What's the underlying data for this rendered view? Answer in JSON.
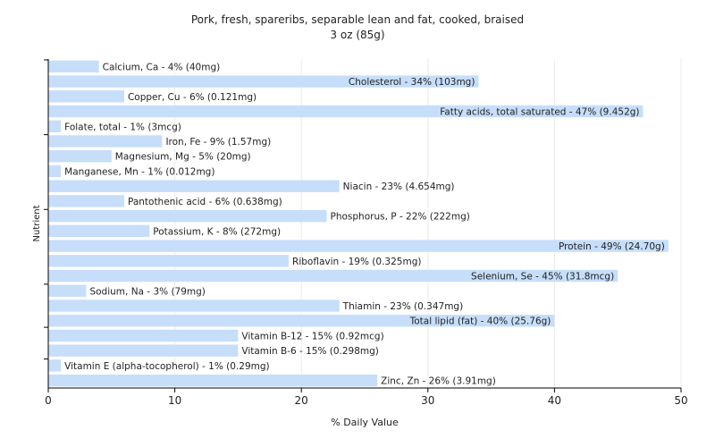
{
  "chart_data": {
    "type": "bar",
    "orientation": "horizontal",
    "title": "Pork, fresh, spareribs, separable lean and fat, cooked, braised",
    "subtitle": "3 oz (85g)",
    "xlabel": "% Daily Value",
    "ylabel": "Nutrient",
    "xlim": [
      0,
      50
    ],
    "xticks": [
      "0",
      "10",
      "20",
      "30",
      "40",
      "50"
    ],
    "grid": "vertical",
    "bar_color": "#c6defa",
    "bars": [
      {
        "name": "Calcium, Ca",
        "value": 4,
        "label": "Calcium, Ca - 4% (40mg)"
      },
      {
        "name": "Cholesterol",
        "value": 34,
        "label": "Cholesterol - 34% (103mg)"
      },
      {
        "name": "Copper, Cu",
        "value": 6,
        "label": "Copper, Cu - 6% (0.121mg)"
      },
      {
        "name": "Fatty acids, total saturated",
        "value": 47,
        "label": "Fatty acids, total saturated - 47% (9.452g)"
      },
      {
        "name": "Folate, total",
        "value": 1,
        "label": "Folate, total - 1% (3mcg)"
      },
      {
        "name": "Iron, Fe",
        "value": 9,
        "label": "Iron, Fe - 9% (1.57mg)"
      },
      {
        "name": "Magnesium, Mg",
        "value": 5,
        "label": "Magnesium, Mg - 5% (20mg)"
      },
      {
        "name": "Manganese, Mn",
        "value": 1,
        "label": "Manganese, Mn - 1% (0.012mg)"
      },
      {
        "name": "Niacin",
        "value": 23,
        "label": "Niacin - 23% (4.654mg)"
      },
      {
        "name": "Pantothenic acid",
        "value": 6,
        "label": "Pantothenic acid - 6% (0.638mg)"
      },
      {
        "name": "Phosphorus, P",
        "value": 22,
        "label": "Phosphorus, P - 22% (222mg)"
      },
      {
        "name": "Potassium, K",
        "value": 8,
        "label": "Potassium, K - 8% (272mg)"
      },
      {
        "name": "Protein",
        "value": 49,
        "label": "Protein - 49% (24.70g)"
      },
      {
        "name": "Riboflavin",
        "value": 19,
        "label": "Riboflavin - 19% (0.325mg)"
      },
      {
        "name": "Selenium, Se",
        "value": 45,
        "label": "Selenium, Se - 45% (31.8mcg)"
      },
      {
        "name": "Sodium, Na",
        "value": 3,
        "label": "Sodium, Na - 3% (79mg)"
      },
      {
        "name": "Thiamin",
        "value": 23,
        "label": "Thiamin - 23% (0.347mg)"
      },
      {
        "name": "Total lipid (fat)",
        "value": 40,
        "label": "Total lipid (fat) - 40% (25.76g)"
      },
      {
        "name": "Vitamin B-12",
        "value": 15,
        "label": "Vitamin B-12 - 15% (0.92mcg)"
      },
      {
        "name": "Vitamin B-6",
        "value": 15,
        "label": "Vitamin B-6 - 15% (0.298mg)"
      },
      {
        "name": "Vitamin E (alpha-tocopherol)",
        "value": 1,
        "label": "Vitamin E (alpha-tocopherol) - 1% (0.29mg)"
      },
      {
        "name": "Zinc, Zn",
        "value": 26,
        "label": "Zinc, Zn - 26% (3.91mg)"
      }
    ]
  }
}
